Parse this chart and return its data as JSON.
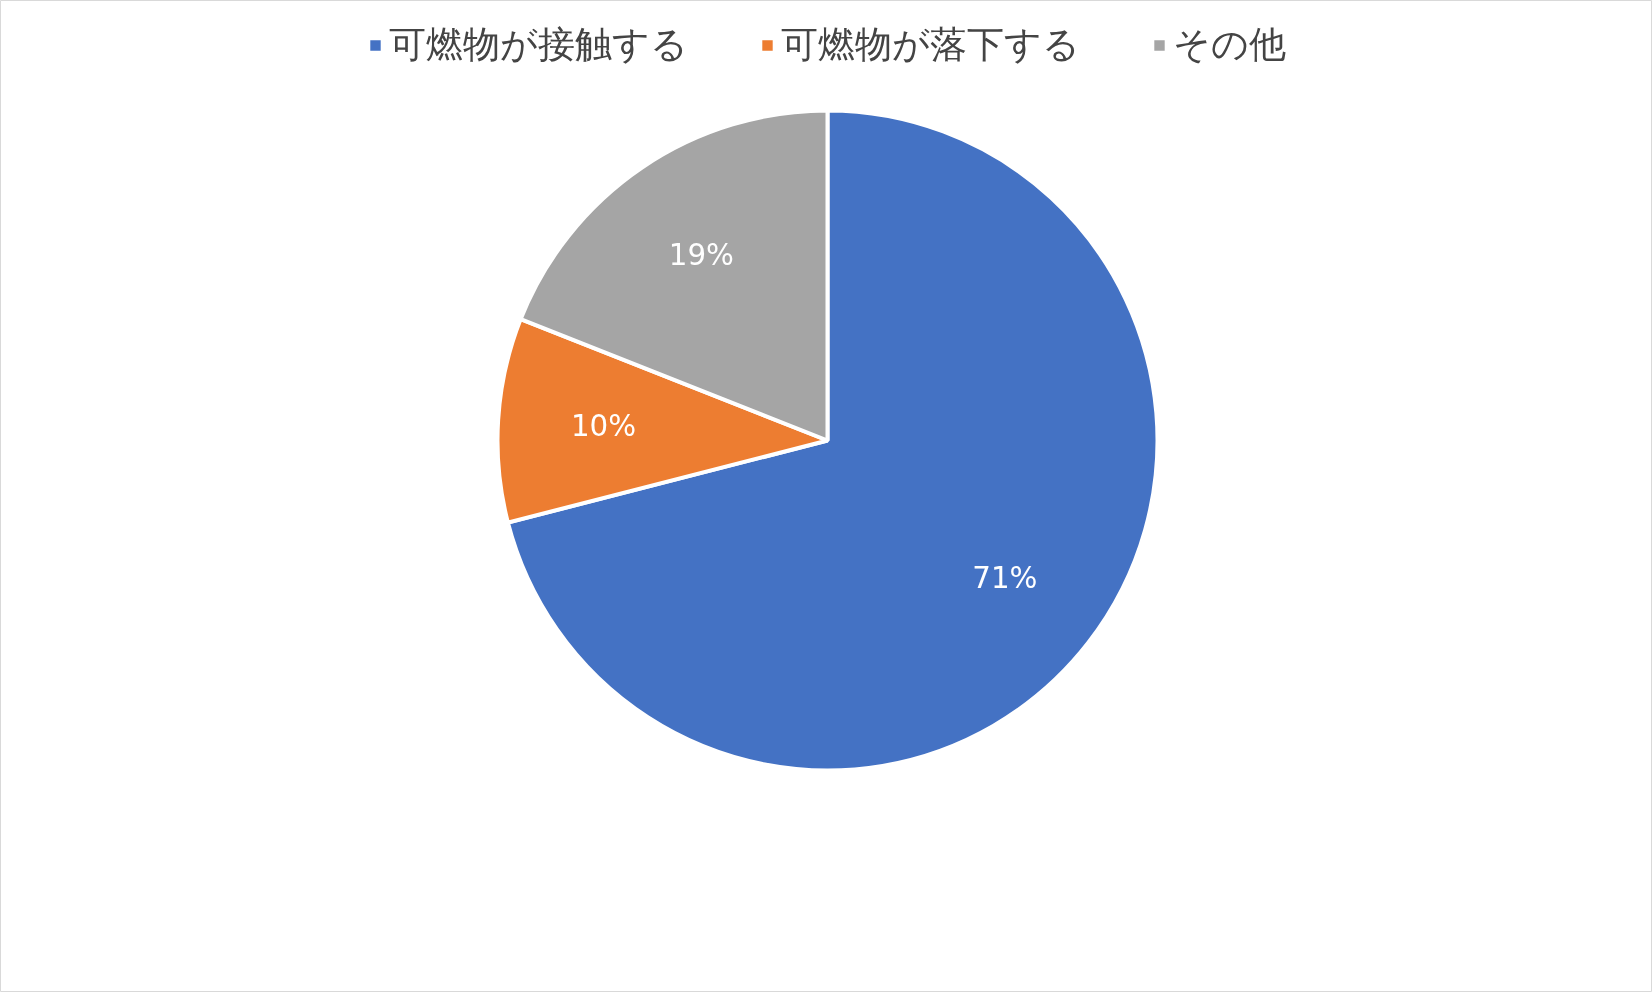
{
  "chart_data": {
    "type": "pie",
    "categories": [
      "可燃物が接触する",
      "可燃物が落下する",
      "その他"
    ],
    "values": [
      71,
      10,
      19
    ],
    "colors": [
      "#4472c4",
      "#ed7d31",
      "#a5a5a5"
    ],
    "value_labels": [
      "71%",
      "10%",
      "19%"
    ],
    "legend": "top"
  }
}
